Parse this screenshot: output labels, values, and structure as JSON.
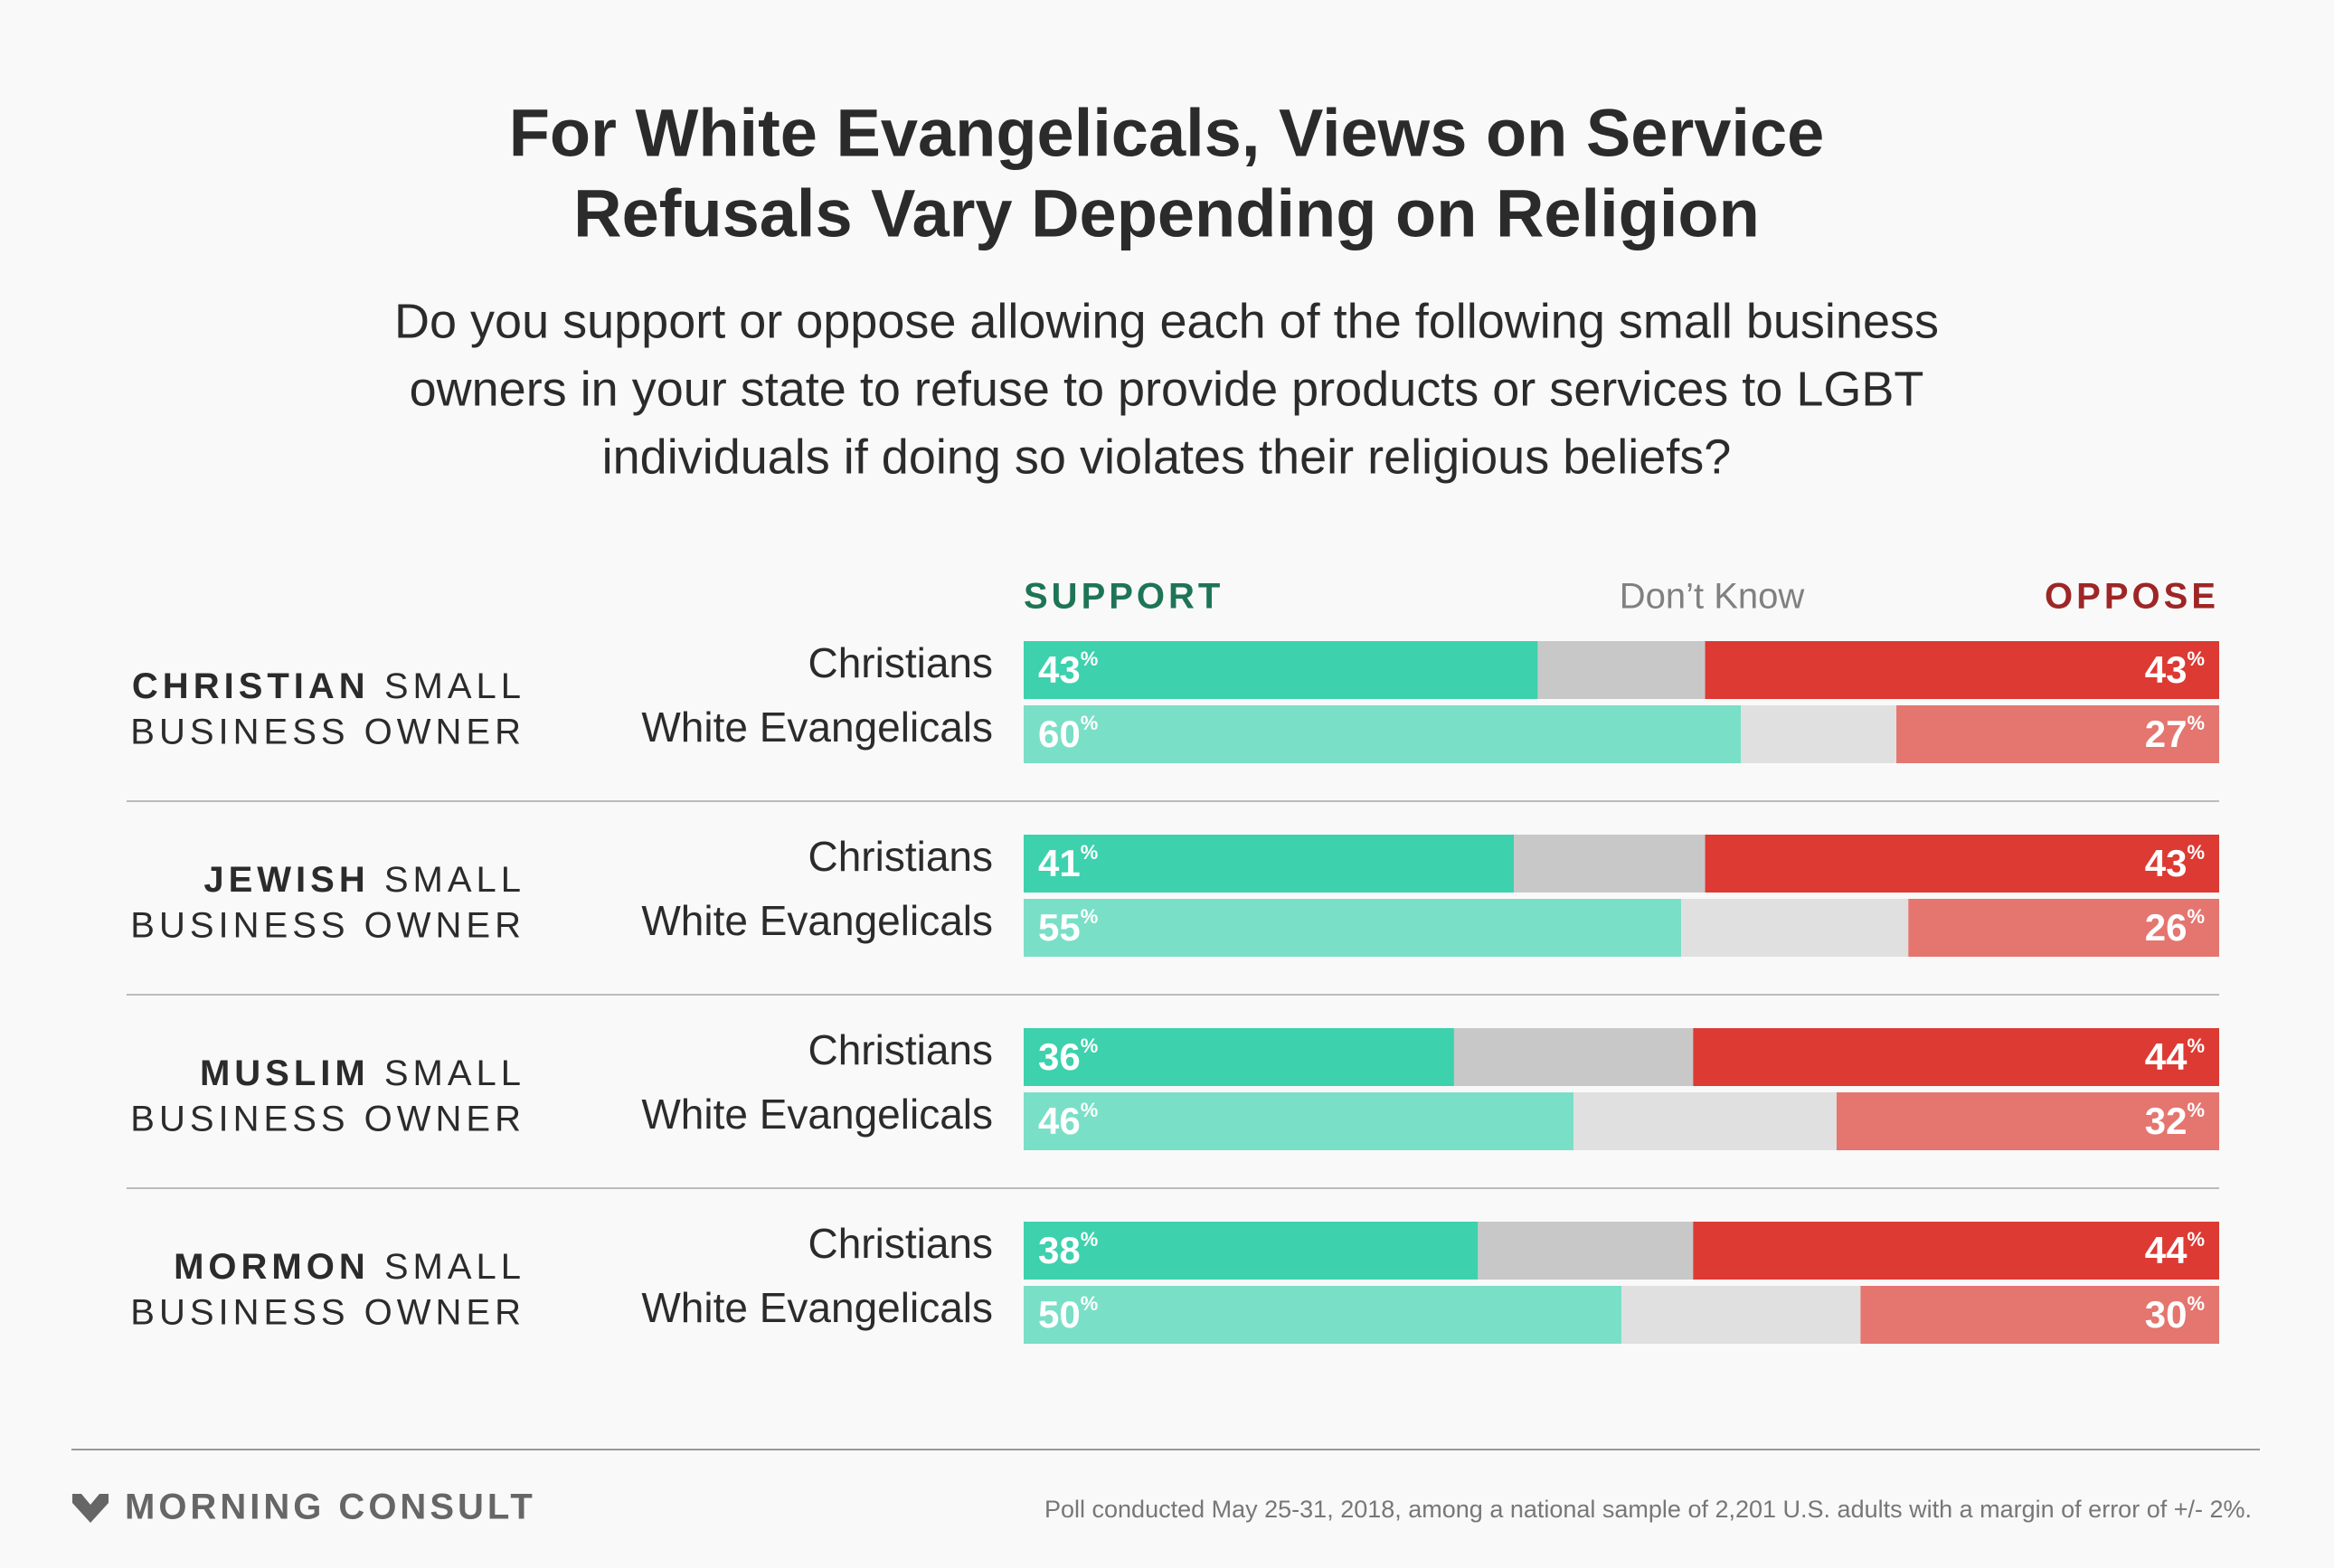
{
  "chart_data": {
    "type": "stacked_bar",
    "title": [
      "For White Evangelicals, Views on Service",
      "Refusals Vary Depending on Religion"
    ],
    "subtitle": [
      "Do you support or oppose allowing each of the following small business",
      "owners in your state to refuse to provide products or services to LGBT",
      "individuals if doing so violates their religious beliefs?"
    ],
    "groups": [
      {
        "name": "CHRISTIAN",
        "rest": "SMALL",
        "line2": "BUSINESS OWNER"
      },
      {
        "name": "JEWISH",
        "rest": "SMALL",
        "line2": "BUSINESS OWNER"
      },
      {
        "name": "MUSLIM",
        "rest": "SMALL",
        "line2": "BUSINESS OWNER"
      },
      {
        "name": "MORMON",
        "rest": "SMALL",
        "line2": "BUSINESS OWNER"
      }
    ],
    "categories": [
      "Christians",
      "White Evangelicals",
      "Christians",
      "White Evangelicals",
      "Christians",
      "White Evangelicals",
      "Christians",
      "White Evangelicals"
    ],
    "xlim": [
      0,
      100
    ],
    "series": [
      {
        "name": "SUPPORT",
        "legend_color": "#1e7556",
        "colors": [
          "#3dd1ad",
          "#7adfc7"
        ],
        "values": [
          43,
          60,
          41,
          55,
          36,
          46,
          38,
          50
        ],
        "value_labels": [
          "43%",
          "60%",
          "41%",
          "55%",
          "36%",
          "46%",
          "38%",
          "50%"
        ]
      },
      {
        "name": "Don’t Know",
        "legend_color": "#808080",
        "colors": [
          "#c8c8c8",
          "#e0e0e0"
        ],
        "values": [
          14,
          13,
          16,
          19,
          20,
          22,
          18,
          20
        ]
      },
      {
        "name": "OPPOSE",
        "legend_color": "#9e2626",
        "colors": [
          "#dc3a33",
          "#e5756f"
        ],
        "values": [
          43,
          27,
          43,
          26,
          44,
          32,
          44,
          30
        ],
        "value_labels": [
          "43%",
          "27%",
          "43%",
          "26%",
          "44%",
          "32%",
          "44%",
          "30%"
        ]
      }
    ],
    "brand": "MORNING CONSULT",
    "note": "Poll conducted May 25-31, 2018, among a national sample of 2,201 U.S. adults with a margin of error of +/- 2%."
  }
}
